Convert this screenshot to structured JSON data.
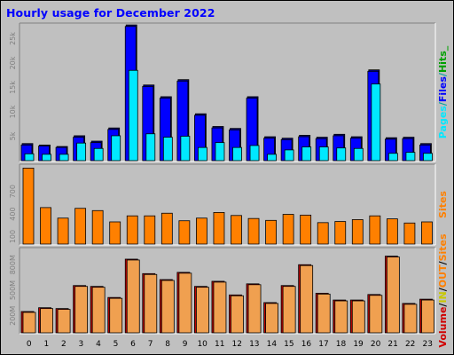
{
  "title": "Hourly usage for December 2022",
  "chart_data": [
    {
      "type": "bar",
      "panel": "top",
      "categories": [
        "0",
        "1",
        "2",
        "3",
        "4",
        "5",
        "6",
        "7",
        "8",
        "9",
        "10",
        "11",
        "12",
        "13",
        "14",
        "15",
        "16",
        "17",
        "18",
        "19",
        "20",
        "21",
        "22",
        "23"
      ],
      "series": [
        {
          "name": "Pages",
          "values": [
            1400,
            1300,
            1300,
            3600,
            2500,
            5100,
            18500,
            5500,
            4800,
            5000,
            2700,
            3700,
            2700,
            3100,
            1300,
            2200,
            2800,
            2800,
            2600,
            2500,
            15700,
            1500,
            1700,
            1500
          ]
        },
        {
          "name": "Files",
          "values": [
            3200,
            3000,
            2700,
            4800,
            3700,
            6400,
            27500,
            15200,
            12800,
            16300,
            9300,
            6700,
            6300,
            12800,
            4600,
            4300,
            4900,
            4500,
            5100,
            4600,
            18300,
            4400,
            4500,
            3200
          ]
        },
        {
          "name": "Hits",
          "values": [
            3500,
            3200,
            2900,
            5100,
            4000,
            6700,
            27800,
            15500,
            13100,
            16600,
            9600,
            7000,
            6600,
            13100,
            4900,
            4600,
            5200,
            4800,
            5400,
            4900,
            18600,
            4700,
            4800,
            3500
          ]
        }
      ],
      "ytick_labels": [
        "5k",
        "10k",
        "15k",
        "20k",
        "25k"
      ],
      "ylim": [
        0,
        28000
      ],
      "right_label": [
        "Pages",
        "/",
        "Files",
        "/",
        "Hits",
        "_"
      ]
    },
    {
      "type": "bar",
      "panel": "middle",
      "categories": [
        "0",
        "1",
        "2",
        "3",
        "4",
        "5",
        "6",
        "7",
        "8",
        "9",
        "10",
        "11",
        "12",
        "13",
        "14",
        "15",
        "16",
        "17",
        "18",
        "19",
        "20",
        "21",
        "22",
        "23"
      ],
      "series": [
        {
          "name": "Sites",
          "values": [
            1010,
            485,
            345,
            475,
            445,
            295,
            375,
            375,
            410,
            310,
            345,
            420,
            380,
            340,
            315,
            395,
            385,
            285,
            300,
            325,
            375,
            335,
            280,
            295
          ]
        }
      ],
      "ytick_labels": [
        "100",
        "400",
        "700"
      ],
      "ylim": [
        0,
        1050
      ],
      "right_label": [
        "Sites"
      ]
    },
    {
      "type": "bar",
      "panel": "bottom",
      "categories": [
        "0",
        "1",
        "2",
        "3",
        "4",
        "5",
        "6",
        "7",
        "8",
        "9",
        "10",
        "11",
        "12",
        "13",
        "14",
        "15",
        "16",
        "17",
        "18",
        "19",
        "20",
        "21",
        "22",
        "23"
      ],
      "series": [
        {
          "name": "IN",
          "values": [
            250,
            295,
            285,
            555,
            545,
            415,
            865,
            695,
            625,
            710,
            545,
            605,
            445,
            575,
            355,
            555,
            800,
            465,
            385,
            385,
            450,
            900,
            345,
            395
          ]
        },
        {
          "name": "OUT",
          "values": [
            240,
            285,
            275,
            545,
            535,
            405,
            855,
            685,
            615,
            700,
            535,
            595,
            435,
            565,
            345,
            545,
            790,
            455,
            375,
            375,
            440,
            890,
            335,
            385
          ]
        }
      ],
      "ytick_labels": [
        "200M",
        "500M",
        "800M"
      ],
      "ylim": [
        0,
        990
      ],
      "right_label": [
        "Volume",
        "/",
        "IN",
        "/",
        "OUT",
        "/",
        "Sites"
      ]
    }
  ],
  "colors": {
    "background": "#c0c0c0",
    "plot_bg": "#c0c0c0",
    "pages": "#00e8ff",
    "files": "#0000ff",
    "hits": "#00a000",
    "sites": "#ff8000",
    "volume": "#d00000",
    "in": "#c8c800",
    "out": "#ff8000",
    "volume_bar": "#f0a050",
    "volume_bar_back": "#c00000",
    "title": "#0000ff"
  }
}
